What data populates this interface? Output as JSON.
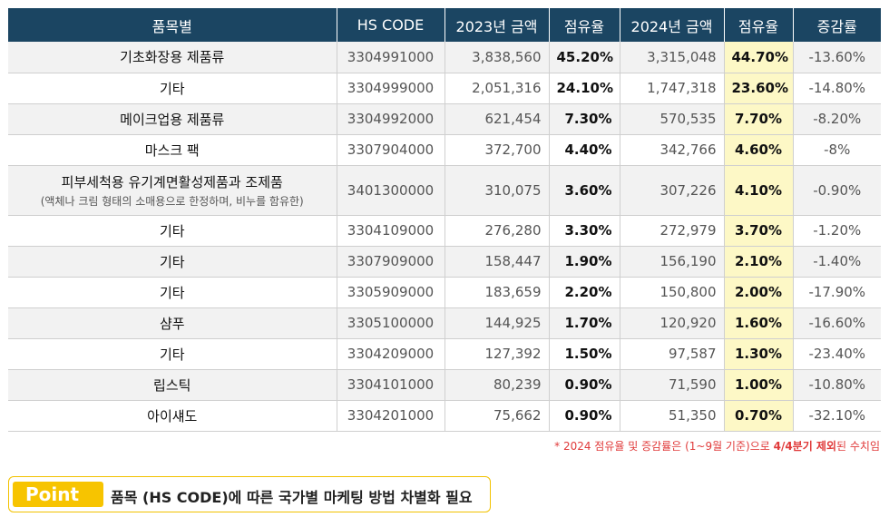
{
  "table": {
    "headers": [
      "품목별",
      "HS CODE",
      "2023년 금액",
      "점유율",
      "2024년 금액",
      "점유율",
      "증감률"
    ],
    "rows": [
      {
        "name": "기초화장용 제품류",
        "sub": "",
        "hs": "3304991000",
        "amt2023": "3,838,560",
        "share2023": "45.20%",
        "amt2024": "3,315,048",
        "share2024": "44.70%",
        "change": "-13.60%"
      },
      {
        "name": "기타",
        "sub": "",
        "hs": "3304999000",
        "amt2023": "2,051,316",
        "share2023": "24.10%",
        "amt2024": "1,747,318",
        "share2024": "23.60%",
        "change": "-14.80%"
      },
      {
        "name": "메이크업용 제품류",
        "sub": "",
        "hs": "3304992000",
        "amt2023": "621,454",
        "share2023": "7.30%",
        "amt2024": "570,535",
        "share2024": "7.70%",
        "change": "-8.20%"
      },
      {
        "name": "마스크 팩",
        "sub": "",
        "hs": "3307904000",
        "amt2023": "372,700",
        "share2023": "4.40%",
        "amt2024": "342,766",
        "share2024": "4.60%",
        "change": "-8%"
      },
      {
        "name": "피부세척용 유기계면활성제품과 조제품",
        "sub": "(액체나 크림 형태의 소매용으로 한정하며, 비누를 함유한)",
        "hs": "3401300000",
        "amt2023": "310,075",
        "share2023": "3.60%",
        "amt2024": "307,226",
        "share2024": "4.10%",
        "change": "-0.90%"
      },
      {
        "name": "기타",
        "sub": "",
        "hs": "3304109000",
        "amt2023": "276,280",
        "share2023": "3.30%",
        "amt2024": "272,979",
        "share2024": "3.70%",
        "change": "-1.20%"
      },
      {
        "name": "기타",
        "sub": "",
        "hs": "3307909000",
        "amt2023": "158,447",
        "share2023": "1.90%",
        "amt2024": "156,190",
        "share2024": "2.10%",
        "change": "-1.40%"
      },
      {
        "name": "기타",
        "sub": "",
        "hs": "3305909000",
        "amt2023": "183,659",
        "share2023": "2.20%",
        "amt2024": "150,800",
        "share2024": "2.00%",
        "change": "-17.90%"
      },
      {
        "name": "샴푸",
        "sub": "",
        "hs": "3305100000",
        "amt2023": "144,925",
        "share2023": "1.70%",
        "amt2024": "120,920",
        "share2024": "1.60%",
        "change": "-16.60%"
      },
      {
        "name": "기타",
        "sub": "",
        "hs": "3304209000",
        "amt2023": "127,392",
        "share2023": "1.50%",
        "amt2024": "97,587",
        "share2024": "1.30%",
        "change": "-23.40%"
      },
      {
        "name": "립스틱",
        "sub": "",
        "hs": "3304101000",
        "amt2023": "80,239",
        "share2023": "0.90%",
        "amt2024": "71,590",
        "share2024": "1.00%",
        "change": "-10.80%"
      },
      {
        "name": "아이섀도",
        "sub": "",
        "hs": "3304201000",
        "amt2023": "75,662",
        "share2023": "0.90%",
        "amt2024": "51,350",
        "share2024": "0.70%",
        "change": "-32.10%"
      }
    ]
  },
  "note": {
    "prefix": "* 2024 점유율 및 증감률은 (1~9월 기준)으로 ",
    "bold": "4/4분기 제외",
    "suffix": "된 수치임"
  },
  "point": {
    "tag": "Point",
    "text": "품목 (HS CODE)에 따른 국가별 마케팅 방법 차별화 필요"
  },
  "colors": {
    "header_bg": "#1b4562",
    "highlight": "#fdf8c6",
    "accent": "#f7c400",
    "note": "#e03a3a"
  }
}
